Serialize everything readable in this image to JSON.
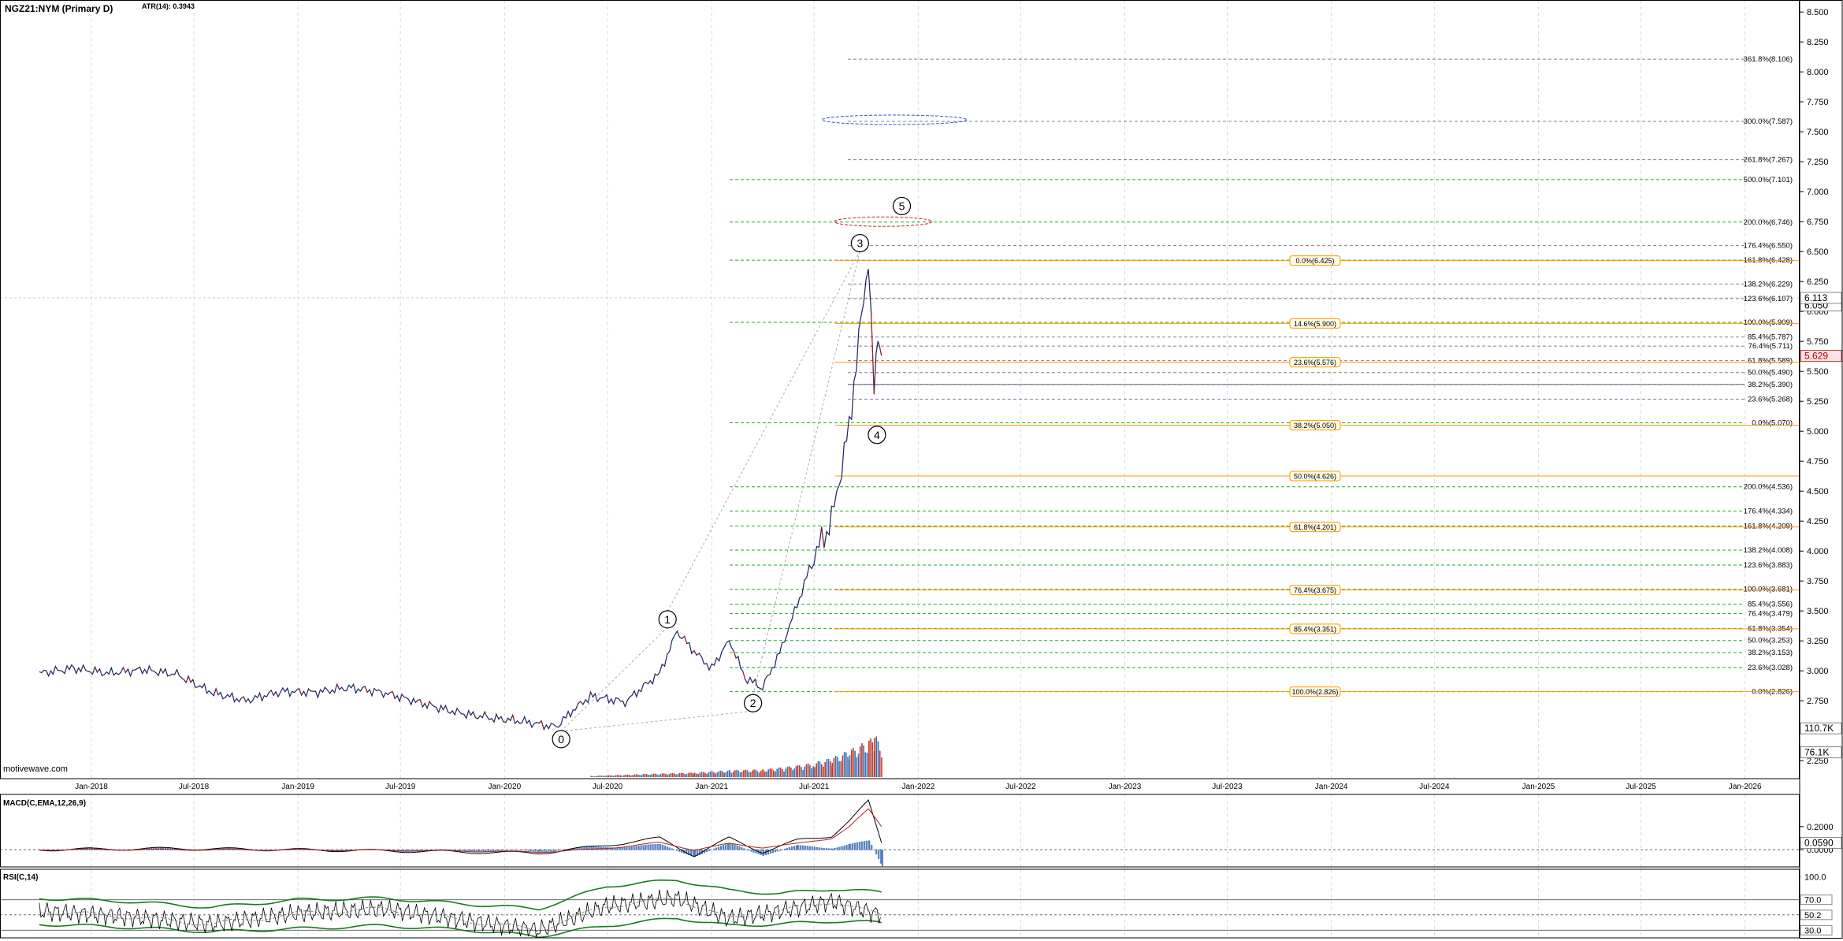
{
  "header": {
    "symbol": "NGZ21:NYM (Primary D)",
    "atr": "ATR(14): 0.3943",
    "watermark": "motivewave.com"
  },
  "colors": {
    "grid": "#d9d9d9",
    "green_fib": "#22aa22",
    "gray_fib": "#7f7f99",
    "orange_fib": "#ff9900",
    "price_up": "#202060",
    "price_down": "#a02020",
    "macd": "#000000",
    "signal": "#b22222",
    "hist": "#4f7fbf",
    "rsi": "#000000",
    "rsi_band": "#1a7a1a"
  },
  "x_axis": {
    "labels": [
      "Jan-2018",
      "Jul-2018",
      "Jan-2019",
      "Jul-2019",
      "Jan-2020",
      "Jul-2020",
      "Jan-2021",
      "Jul-2021",
      "Jan-2022",
      "Jul-2022",
      "Jan-2023",
      "Jul-2023",
      "Jan-2024",
      "Jul-2024",
      "Jan-2025",
      "Jul-2025",
      "Jan-2026"
    ]
  },
  "price_axis": {
    "ticks": [
      "8.500",
      "8.250",
      "8.000",
      "7.750",
      "7.500",
      "7.250",
      "7.000",
      "6.750",
      "6.500",
      "6.250",
      "6.000",
      "5.750",
      "5.500",
      "5.250",
      "5.000",
      "4.750",
      "4.500",
      "4.250",
      "4.000",
      "3.750",
      "3.500",
      "3.250",
      "3.000",
      "2.750",
      "2.500",
      "2.250"
    ],
    "badges": [
      {
        "label": "6.050",
        "value": 6.05,
        "style": "plain"
      },
      {
        "label": "6.113",
        "value": 6.113,
        "style": "plain"
      },
      {
        "label": "5.629",
        "value": 5.629,
        "style": "red"
      },
      {
        "label": "110.7K",
        "value": 2.52,
        "style": "plain"
      },
      {
        "label": "76.1K",
        "value": 2.32,
        "style": "plain"
      }
    ]
  },
  "chart_data": [
    {
      "type": "line",
      "title": "NGZ21:NYM (Primary D)",
      "ylim": [
        2.1,
        8.6
      ],
      "x": [
        "2017-10",
        "2017-12",
        "2018-02",
        "2018-04",
        "2018-06",
        "2018-08",
        "2018-10",
        "2018-12",
        "2019-02",
        "2019-04",
        "2019-06",
        "2019-08",
        "2019-10",
        "2019-12",
        "2020-02",
        "2020-04",
        "2020-05",
        "2020-06",
        "2020-08",
        "2020-10",
        "2020-11",
        "2020-12",
        "2021-01",
        "2021-02",
        "2021-03",
        "2021-04",
        "2021-05",
        "2021-06",
        "2021-07",
        "2021-08",
        "2021-09",
        "2021-10-05",
        "2021-10-15",
        "2021-10-22",
        "2021-10-28"
      ],
      "values": [
        2.98,
        3.02,
        2.98,
        3.01,
        2.97,
        2.82,
        2.75,
        2.83,
        2.82,
        2.86,
        2.82,
        2.74,
        2.66,
        2.61,
        2.58,
        2.53,
        2.67,
        2.79,
        2.74,
        2.98,
        3.33,
        3.16,
        3.02,
        3.26,
        2.94,
        2.86,
        3.15,
        3.55,
        3.95,
        4.25,
        5.05,
        6.45,
        5.3,
        5.85,
        5.63
      ],
      "volume_x": [
        "2020-06",
        "2020-09",
        "2020-12",
        "2021-02",
        "2021-04",
        "2021-06",
        "2021-07",
        "2021-08",
        "2021-09",
        "2021-10-05",
        "2021-10-15",
        "2021-10-28"
      ],
      "volume_values": [
        3,
        8,
        12,
        18,
        20,
        30,
        38,
        50,
        70,
        95,
        110.7,
        80
      ],
      "waves": [
        {
          "label": "0",
          "x": "2020-04-10",
          "y": 2.43
        },
        {
          "label": "1",
          "x": "2020-10-15",
          "y": 3.43
        },
        {
          "label": "2",
          "x": "2021-03-15",
          "y": 2.73
        },
        {
          "label": "3",
          "x": "2021-09-20",
          "y": 6.57
        },
        {
          "label": "4",
          "x": "2021-10-20",
          "y": 4.97
        },
        {
          "label": "5",
          "x": "2021-12-03",
          "y": 6.88
        }
      ],
      "fib_right": [
        {
          "label": "361.8%(8.106)",
          "value": 8.106,
          "color": "gray"
        },
        {
          "label": "300.0%(7.587)",
          "value": 7.587,
          "color": "gray"
        },
        {
          "label": "261.8%(7.267)",
          "value": 7.267,
          "color": "gray"
        },
        {
          "label": "500.0%(7.101)",
          "value": 7.101,
          "color": "green"
        },
        {
          "label": "200.0%(6.746)",
          "value": 6.746,
          "color": "green"
        },
        {
          "label": "176.4%(6.550)",
          "value": 6.55,
          "color": "gray"
        },
        {
          "label": "161.8%(6.428)",
          "value": 6.428,
          "color": "green"
        },
        {
          "label": "138.2%(6.229)",
          "value": 6.229,
          "color": "gray"
        },
        {
          "label": "123.6%(6.107)",
          "value": 6.107,
          "color": "gray"
        },
        {
          "label": "100.0%(5.909)",
          "value": 5.909,
          "color": "green"
        },
        {
          "label": "85.4%(5.787)",
          "value": 5.787,
          "color": "gray"
        },
        {
          "label": "76.4%(5.711)",
          "value": 5.711,
          "color": "gray"
        },
        {
          "label": "61.8%(5.589)",
          "value": 5.589,
          "color": "gray"
        },
        {
          "label": "50.0%(5.490)",
          "value": 5.49,
          "color": "gray"
        },
        {
          "label": "38.2%(5.390)",
          "value": 5.39,
          "color": "gray"
        },
        {
          "label": "23.6%(5.268)",
          "value": 5.268,
          "color": "gray"
        },
        {
          "label": "0.0%(5.070)",
          "value": 5.07,
          "color": "green"
        },
        {
          "label": "200.0%(4.536)",
          "value": 4.536,
          "color": "green"
        },
        {
          "label": "176.4%(4.334)",
          "value": 4.334,
          "color": "green"
        },
        {
          "label": "161.8%(4.209)",
          "value": 4.209,
          "color": "green"
        },
        {
          "label": "138.2%(4.008)",
          "value": 4.008,
          "color": "green"
        },
        {
          "label": "123.6%(3.883)",
          "value": 3.883,
          "color": "green"
        },
        {
          "label": "100.0%(3.681)",
          "value": 3.681,
          "color": "green"
        },
        {
          "label": "85.4%(3.556)",
          "value": 3.556,
          "color": "green"
        },
        {
          "label": "76.4%(3.479)",
          "value": 3.479,
          "color": "green"
        },
        {
          "label": "61.8%(3.354)",
          "value": 3.354,
          "color": "green"
        },
        {
          "label": "50.0%(3.253)",
          "value": 3.253,
          "color": "green"
        },
        {
          "label": "38.2%(3.153)",
          "value": 3.153,
          "color": "green"
        },
        {
          "label": "23.6%(3.028)",
          "value": 3.028,
          "color": "green"
        },
        {
          "label": "0.0%(2.826)",
          "value": 2.826,
          "color": "green"
        }
      ],
      "fib_boxes": [
        {
          "label": "0.0%(6.425)",
          "value": 6.425
        },
        {
          "label": "14.6%(5.900)",
          "value": 5.9
        },
        {
          "label": "23.6%(5.576)",
          "value": 5.576
        },
        {
          "label": "38.2%(5.050)",
          "value": 5.05
        },
        {
          "label": "50.0%(4.626)",
          "value": 4.626
        },
        {
          "label": "61.8%(4.201)",
          "value": 4.201
        },
        {
          "label": "76.4%(3.675)",
          "value": 3.675
        },
        {
          "label": "85.4%(3.351)",
          "value": 3.351
        },
        {
          "label": "100.0%(2.826)",
          "value": 2.826
        }
      ]
    },
    {
      "type": "line",
      "title": "MACD(C,EMA,12,26,9)",
      "ylim": [
        -0.15,
        0.48
      ],
      "ticks": [
        "0.2000",
        "0.0000"
      ],
      "badge": "0.0590",
      "x": [
        "2017-10",
        "2018-06",
        "2019-06",
        "2020-03",
        "2020-06",
        "2020-10",
        "2020-12",
        "2021-02",
        "2021-04",
        "2021-06",
        "2021-08",
        "2021-09",
        "2021-10-05",
        "2021-10-28"
      ],
      "macd": [
        0.0,
        0.01,
        -0.01,
        -0.03,
        0.02,
        0.1,
        -0.05,
        0.1,
        -0.02,
        0.08,
        0.12,
        0.25,
        0.42,
        0.06
      ],
      "signal": [
        0.0,
        0.0,
        -0.005,
        -0.02,
        0.0,
        0.06,
        0.0,
        0.05,
        0.02,
        0.05,
        0.1,
        0.2,
        0.35,
        0.2
      ],
      "histogram": [
        0.0,
        0.01,
        -0.005,
        -0.01,
        0.02,
        0.04,
        -0.05,
        0.05,
        -0.04,
        0.03,
        0.02,
        0.05,
        0.07,
        -0.14
      ]
    },
    {
      "type": "line",
      "title": "RSI(C,14)",
      "ylim": [
        20,
        110
      ],
      "ticks": [
        "100.0",
        "70.0",
        "50.2",
        "30.0"
      ],
      "x": [
        "2017-10",
        "2018-03",
        "2018-08",
        "2019-01",
        "2019-06",
        "2019-11",
        "2020-03",
        "2020-07",
        "2020-11",
        "2021-02",
        "2021-05",
        "2021-08",
        "2021-10-28"
      ],
      "values": [
        55,
        48,
        38,
        52,
        58,
        42,
        30,
        62,
        72,
        45,
        55,
        68,
        50
      ],
      "upper_band": [
        72,
        68,
        60,
        70,
        72,
        64,
        58,
        88,
        96,
        82,
        78,
        84,
        80
      ],
      "lower_band": [
        38,
        34,
        28,
        32,
        36,
        30,
        22,
        36,
        46,
        36,
        38,
        42,
        40
      ]
    }
  ]
}
